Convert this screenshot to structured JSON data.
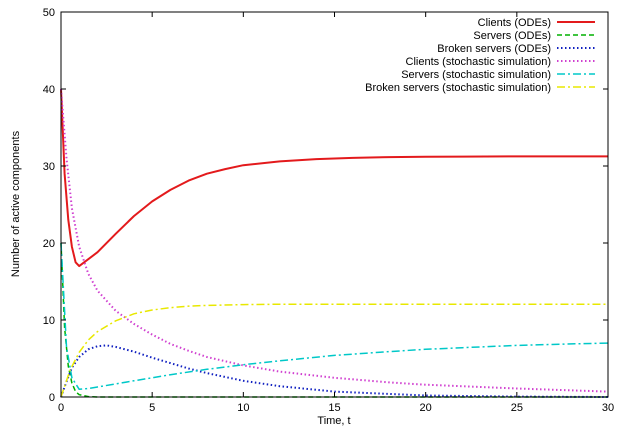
{
  "chart_data": {
    "type": "line",
    "xlabel": "Time, t",
    "ylabel": "Number of active components",
    "xlim": [
      0,
      30
    ],
    "ylim": [
      0,
      50
    ],
    "x_ticks": [
      0,
      5,
      10,
      15,
      20,
      25,
      30
    ],
    "y_ticks": [
      0,
      10,
      20,
      30,
      40,
      50
    ],
    "grid": false,
    "legend_position": "top-right",
    "series": [
      {
        "name": "Clients (ODEs)",
        "color": "#e31a1c",
        "dash": "solid",
        "x": [
          0,
          0.2,
          0.4,
          0.6,
          0.8,
          1.0,
          2,
          3,
          4,
          5,
          6,
          7,
          8,
          9,
          10,
          12,
          14,
          16,
          18,
          20,
          22,
          25,
          28,
          30
        ],
        "y": [
          40,
          29,
          23,
          19.5,
          17.5,
          17,
          18.8,
          21.2,
          23.5,
          25.4,
          26.9,
          28.1,
          29,
          29.6,
          30.1,
          30.6,
          30.9,
          31.05,
          31.15,
          31.2,
          31.22,
          31.25,
          31.25,
          31.25
        ]
      },
      {
        "name": "Servers (ODEs)",
        "color": "#00b000",
        "dash": "dashed",
        "x": [
          0,
          0.2,
          0.4,
          0.6,
          0.8,
          1.0,
          1.5,
          2,
          30
        ],
        "y": [
          20,
          9,
          4,
          1.8,
          0.7,
          0.3,
          0.05,
          0,
          0
        ]
      },
      {
        "name": "Broken servers (ODEs)",
        "color": "#1020c0",
        "dash": "dotted",
        "x": [
          0,
          0.3,
          0.6,
          1,
          1.5,
          2,
          2.5,
          3,
          4,
          5,
          6,
          7,
          8,
          10,
          12,
          15,
          20,
          25,
          30
        ],
        "y": [
          0,
          2,
          3.8,
          5.2,
          6.2,
          6.6,
          6.7,
          6.5,
          5.9,
          5.1,
          4.4,
          3.7,
          3.1,
          2.1,
          1.4,
          0.7,
          0.2,
          0.05,
          0
        ]
      },
      {
        "name": "Clients (stochastic simulation)",
        "color": "#d040d0",
        "dash": "dotted",
        "x": [
          0,
          0.3,
          0.6,
          1,
          1.5,
          2,
          3,
          4,
          5,
          6,
          7,
          8,
          10,
          12,
          15,
          18,
          20,
          25,
          30
        ],
        "y": [
          40,
          31,
          24.5,
          19.5,
          16,
          13.8,
          11.2,
          9.5,
          8.1,
          6.9,
          6,
          5.2,
          4.1,
          3.3,
          2.5,
          1.9,
          1.6,
          1.1,
          0.7
        ]
      },
      {
        "name": "Servers (stochastic simulation)",
        "color": "#00c8c8",
        "dash": "dashdot",
        "x": [
          0,
          0.3,
          0.6,
          1,
          1.5,
          2,
          3,
          4,
          5,
          6,
          8,
          10,
          12,
          15,
          18,
          20,
          22,
          25,
          28,
          30
        ],
        "y": [
          20,
          6.5,
          2.5,
          1.0,
          1.1,
          1.3,
          1.7,
          2.1,
          2.5,
          2.9,
          3.6,
          4.2,
          4.7,
          5.4,
          5.9,
          6.2,
          6.4,
          6.7,
          6.9,
          7.0
        ]
      },
      {
        "name": "Broken servers (stochastic simulation)",
        "color": "#e8e800",
        "dash": "dashdot",
        "x": [
          0,
          0.5,
          1,
          1.5,
          2,
          3,
          4,
          5,
          6,
          7,
          8,
          10,
          12,
          15,
          20,
          25,
          30
        ],
        "y": [
          0,
          3.5,
          5.8,
          7.4,
          8.5,
          9.9,
          10.8,
          11.3,
          11.6,
          11.8,
          11.9,
          12,
          12.05,
          12.05,
          12.05,
          12.05,
          12.05
        ]
      }
    ]
  }
}
